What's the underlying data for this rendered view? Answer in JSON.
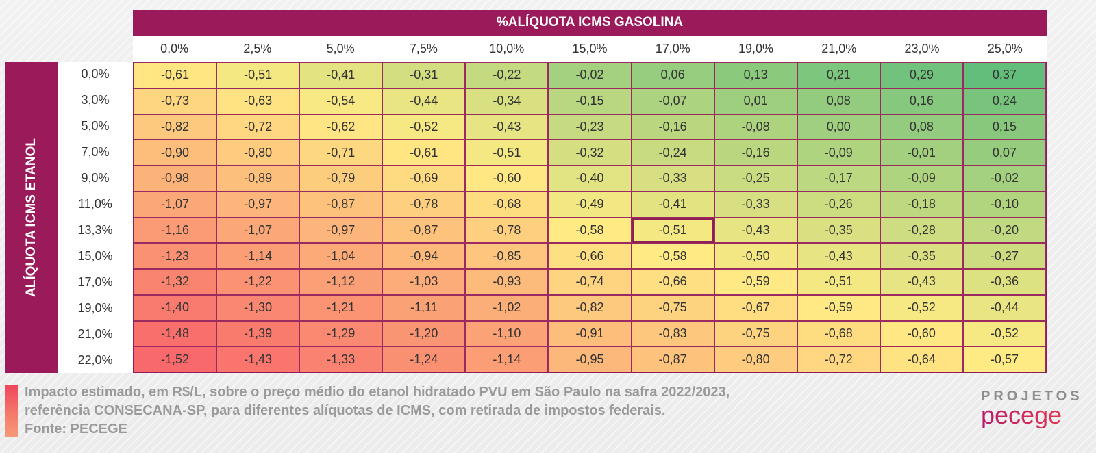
{
  "chart_data": {
    "type": "heatmap",
    "title": "%ALÍQUOTA ICMS GASOLINA",
    "xlabel": "%ALÍQUOTA ICMS GASOLINA",
    "ylabel": "ALÍQUOTA ICMS ETANOL",
    "x_categories": [
      "0,0%",
      "2,5%",
      "5,0%",
      "7,5%",
      "10,0%",
      "15,0%",
      "17,0%",
      "19,0%",
      "21,0%",
      "23,0%",
      "25,0%"
    ],
    "y_categories": [
      "0,0%",
      "3,0%",
      "5,0%",
      "7,0%",
      "9,0%",
      "11,0%",
      "13,3%",
      "15,0%",
      "17,0%",
      "19,0%",
      "21,0%",
      "22,0%"
    ],
    "values": [
      [
        -0.61,
        -0.51,
        -0.41,
        -0.31,
        -0.22,
        -0.02,
        0.06,
        0.13,
        0.21,
        0.29,
        0.37
      ],
      [
        -0.73,
        -0.63,
        -0.54,
        -0.44,
        -0.34,
        -0.15,
        -0.07,
        0.01,
        0.08,
        0.16,
        0.24
      ],
      [
        -0.82,
        -0.72,
        -0.62,
        -0.52,
        -0.43,
        -0.23,
        -0.16,
        -0.08,
        0.0,
        0.08,
        0.15
      ],
      [
        -0.9,
        -0.8,
        -0.71,
        -0.61,
        -0.51,
        -0.32,
        -0.24,
        -0.16,
        -0.09,
        -0.01,
        0.07
      ],
      [
        -0.98,
        -0.89,
        -0.79,
        -0.69,
        -0.6,
        -0.4,
        -0.33,
        -0.25,
        -0.17,
        -0.09,
        -0.02
      ],
      [
        -1.07,
        -0.97,
        -0.87,
        -0.78,
        -0.68,
        -0.49,
        -0.41,
        -0.33,
        -0.26,
        -0.18,
        -0.1
      ],
      [
        -1.16,
        -1.07,
        -0.97,
        -0.87,
        -0.78,
        -0.58,
        -0.51,
        -0.43,
        -0.35,
        -0.28,
        -0.2
      ],
      [
        -1.23,
        -1.14,
        -1.04,
        -0.94,
        -0.85,
        -0.66,
        -0.58,
        -0.5,
        -0.43,
        -0.35,
        -0.27
      ],
      [
        -1.32,
        -1.22,
        -1.12,
        -1.03,
        -0.93,
        -0.74,
        -0.66,
        -0.59,
        -0.51,
        -0.43,
        -0.36
      ],
      [
        -1.4,
        -1.3,
        -1.21,
        -1.11,
        -1.02,
        -0.82,
        -0.75,
        -0.67,
        -0.59,
        -0.52,
        -0.44
      ],
      [
        -1.48,
        -1.39,
        -1.29,
        -1.2,
        -1.1,
        -0.91,
        -0.83,
        -0.75,
        -0.68,
        -0.6,
        -0.52
      ],
      [
        -1.52,
        -1.43,
        -1.33,
        -1.24,
        -1.14,
        -0.95,
        -0.87,
        -0.8,
        -0.72,
        -0.64,
        -0.57
      ]
    ],
    "highlight": {
      "row": 6,
      "col": 6
    },
    "color_scale": {
      "low": "#f8696b",
      "mid": "#ffeb84",
      "high": "#63be7b"
    }
  },
  "caption": {
    "line1": "Impacto estimado, em R$/L, sobre o preço médio do etanol hidratado PVU em São Paulo na safra 2022/2023,",
    "line2": "referência CONSECANA-SP, para diferentes alíquotas de ICMS, com retirada de impostos federais.",
    "line3": "Fonte: PECEGE"
  },
  "logo": {
    "top": "PROJETOS",
    "bottom": "pecege"
  },
  "colors": {
    "header": "#9b1b5a"
  }
}
